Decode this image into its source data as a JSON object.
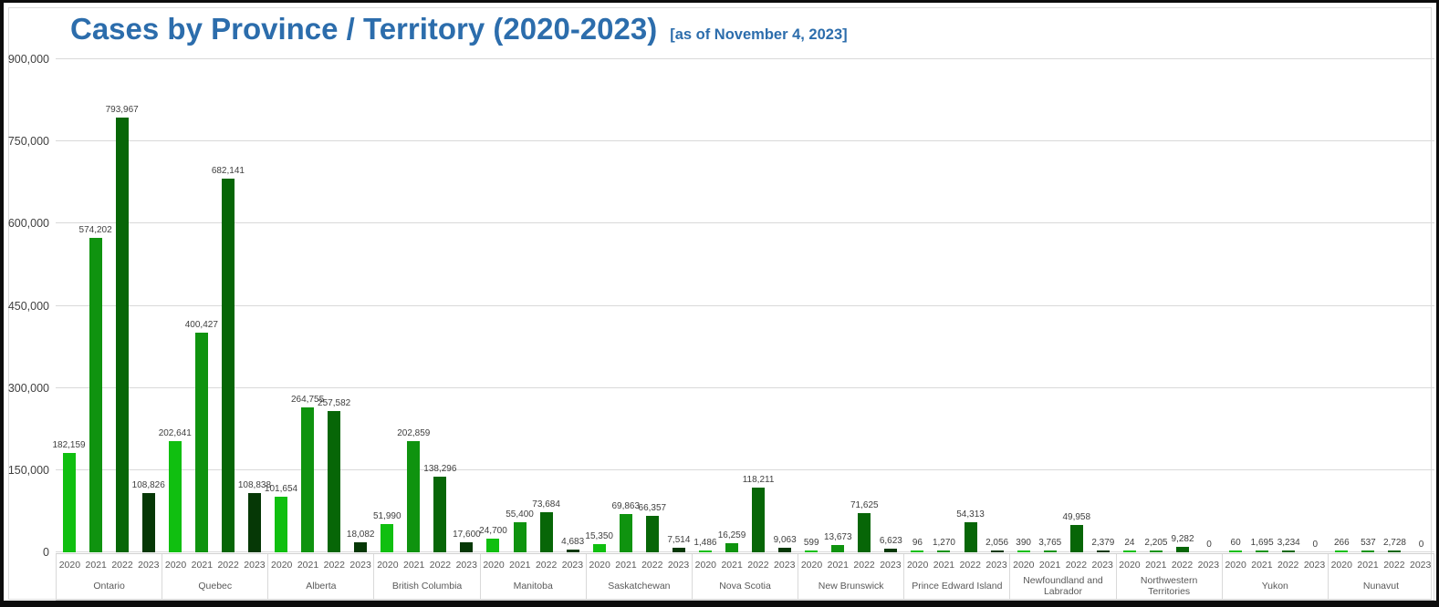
{
  "header": {
    "title": "Cases by Province / Territory (2020-2023)",
    "subtitle": "[as of November 4, 2023]",
    "title_color": "#2c6dac"
  },
  "chart_data": {
    "type": "bar",
    "title": "Cases by Province / Territory (2020-2023)",
    "subtitle": "[as of November 4, 2023]",
    "ylabel": "",
    "xlabel": "",
    "ylim": [
      0,
      900000
    ],
    "grid": true,
    "legend_position": "none",
    "y_tick_values": [
      900000,
      750000,
      600000,
      450000,
      300000,
      150000,
      0
    ],
    "y_ticks": [
      "900,000",
      "750,000",
      "600,000",
      "450,000",
      "300,000",
      "150,000",
      "0"
    ],
    "years": [
      "2020",
      "2021",
      "2022",
      "2023"
    ],
    "year_colors": {
      "2020": "#10bf10",
      "2021": "#0f930f",
      "2022": "#076607",
      "2023": "#063806"
    },
    "categories": [
      "Ontario",
      "Quebec",
      "Alberta",
      "British Columbia",
      "Manitoba",
      "Saskatchewan",
      "Nova Scotia",
      "New Brunswick",
      "Prince Edward Island",
      "Newfoundland and Labrador",
      "Northwestern Territories",
      "Yukon",
      "Nunavut"
    ],
    "series": [
      {
        "name": "2020",
        "values": [
          182159,
          202641,
          101654,
          51990,
          24700,
          15350,
          1486,
          599,
          96,
          390,
          24,
          60,
          266
        ]
      },
      {
        "name": "2021",
        "values": [
          574202,
          400427,
          264755,
          202859,
          55400,
          69863,
          16259,
          13673,
          1270,
          3765,
          2205,
          1695,
          537
        ]
      },
      {
        "name": "2022",
        "values": [
          793967,
          682141,
          257582,
          138296,
          73684,
          66357,
          118211,
          71625,
          54313,
          49958,
          9282,
          3234,
          2728
        ]
      },
      {
        "name": "2023",
        "values": [
          108826,
          108838,
          18082,
          17600,
          4683,
          7514,
          9063,
          6623,
          2056,
          2379,
          0,
          0,
          0
        ]
      }
    ],
    "colors_note": {
      "grid_color": "#d9d9d9",
      "axis_band_border": "#d0d0d0",
      "axis_text": "#595959",
      "value_label_text": "#404040"
    }
  }
}
